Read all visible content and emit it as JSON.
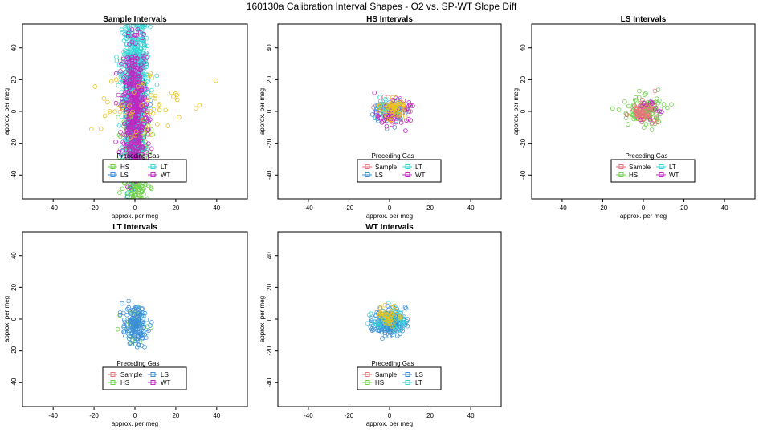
{
  "figure": {
    "title": "160130a   Calibration Interval Shapes - O2 vs. SP-WT Slope Diff"
  },
  "colors": {
    "Sample": "#e8737a",
    "HS": "#6fd04a",
    "LS": "#3b8fd8",
    "LT": "#39d6d6",
    "WT": "#c026c0",
    "other": "#e8c21c",
    "black": "#000000"
  },
  "chart_data": [
    {
      "type": "scatter",
      "title": "Sample Intervals",
      "xlabel": "approx. per meg",
      "ylabel": "approx. per meg",
      "xlim": [
        -55,
        55
      ],
      "ylim": [
        -55,
        55
      ],
      "xticks": [
        -40,
        -20,
        0,
        20,
        40
      ],
      "yticks": [
        -40,
        -20,
        0,
        20,
        40
      ],
      "legend": {
        "title": "Preceding Gas",
        "placement": "bottom-center",
        "entries": [
          "HS",
          "LT",
          "LS",
          "WT"
        ]
      },
      "series": [
        {
          "name": "HS",
          "n": 420,
          "center": [
            0,
            -30
          ],
          "spread": [
            3,
            16
          ]
        },
        {
          "name": "LS",
          "n": 120,
          "center": [
            0,
            0
          ],
          "spread": [
            3,
            22
          ]
        },
        {
          "name": "LT",
          "n": 900,
          "center": [
            0,
            15
          ],
          "spread": [
            3,
            22
          ]
        },
        {
          "name": "WT",
          "n": 500,
          "center": [
            0,
            0
          ],
          "spread": [
            3,
            20
          ]
        },
        {
          "name": "",
          "n": 60,
          "center": [
            0,
            5
          ],
          "spread": [
            12,
            12
          ]
        }
      ]
    },
    {
      "type": "scatter",
      "title": "HS Intervals",
      "xlabel": "approx. per meg",
      "ylabel": "approx. per meg",
      "xlim": [
        -55,
        55
      ],
      "ylim": [
        -55,
        55
      ],
      "xticks": [
        -40,
        -20,
        0,
        20,
        40
      ],
      "yticks": [
        -40,
        -20,
        0,
        20,
        40
      ],
      "legend": {
        "title": "Preceding Gas",
        "placement": "bottom-center",
        "entries": [
          "Sample",
          "LT",
          "LS",
          "WT"
        ]
      },
      "series": [
        {
          "name": "Sample",
          "n": 60,
          "center": [
            0,
            0
          ],
          "spread": [
            4,
            4
          ]
        },
        {
          "name": "LS",
          "n": 60,
          "center": [
            0,
            0
          ],
          "spread": [
            4,
            4
          ]
        },
        {
          "name": "LT",
          "n": 40,
          "center": [
            0,
            0
          ],
          "spread": [
            3,
            3
          ]
        },
        {
          "name": "WT",
          "n": 60,
          "center": [
            2,
            -1
          ],
          "spread": [
            4,
            4
          ]
        },
        {
          "name": "",
          "n": 60,
          "center": [
            2,
            2
          ],
          "spread": [
            3,
            3
          ]
        }
      ]
    },
    {
      "type": "scatter",
      "title": "LS Intervals",
      "xlabel": "approx. per meg",
      "ylabel": "approx. per meg",
      "xlim": [
        -55,
        55
      ],
      "ylim": [
        -55,
        55
      ],
      "xticks": [
        -40,
        -20,
        0,
        20,
        40
      ],
      "yticks": [
        -40,
        -20,
        0,
        20,
        40
      ],
      "legend": {
        "title": "Preceding Gas",
        "placement": "bottom-center",
        "entries": [
          "Sample",
          "LT",
          "HS",
          "WT"
        ]
      },
      "series": [
        {
          "name": "HS",
          "n": 110,
          "center": [
            0,
            0
          ],
          "spread": [
            5,
            5
          ]
        },
        {
          "name": "Sample",
          "n": 70,
          "center": [
            0,
            0
          ],
          "spread": [
            3,
            3
          ]
        },
        {
          "name": "WT",
          "n": 12,
          "center": [
            4,
            3
          ],
          "spread": [
            4,
            3
          ]
        }
      ]
    },
    {
      "type": "scatter",
      "title": "LT Intervals",
      "xlabel": "approx. per meg",
      "ylabel": "approx. per meg",
      "xlim": [
        -55,
        55
      ],
      "ylim": [
        -55,
        55
      ],
      "xticks": [
        -40,
        -20,
        0,
        20,
        40
      ],
      "yticks": [
        -40,
        -20,
        0,
        20,
        40
      ],
      "legend": {
        "title": "Preceding Gas",
        "placement": "bottom-center",
        "entries": [
          "Sample",
          "LS",
          "HS",
          "WT"
        ]
      },
      "series": [
        {
          "name": "HS",
          "n": 50,
          "center": [
            0,
            -4
          ],
          "spread": [
            3,
            6
          ]
        },
        {
          "name": "LS",
          "n": 150,
          "center": [
            0,
            -4
          ],
          "spread": [
            3,
            6
          ]
        }
      ]
    },
    {
      "type": "scatter",
      "title": "WT Intervals",
      "xlabel": "approx. per meg",
      "ylabel": "approx. per meg",
      "xlim": [
        -55,
        55
      ],
      "ylim": [
        -55,
        55
      ],
      "xticks": [
        -40,
        -20,
        0,
        20,
        40
      ],
      "yticks": [
        -40,
        -20,
        0,
        20,
        40
      ],
      "legend": {
        "title": "Preceding Gas",
        "placement": "bottom-center",
        "entries": [
          "Sample",
          "LS",
          "HS",
          "LT"
        ]
      },
      "series": [
        {
          "name": "LS",
          "n": 200,
          "center": [
            0,
            -2
          ],
          "spread": [
            4,
            4
          ]
        },
        {
          "name": "LT",
          "n": 50,
          "center": [
            0,
            0
          ],
          "spread": [
            4,
            4
          ]
        },
        {
          "name": "",
          "n": 40,
          "center": [
            0,
            2
          ],
          "spread": [
            3,
            3
          ]
        }
      ]
    }
  ]
}
